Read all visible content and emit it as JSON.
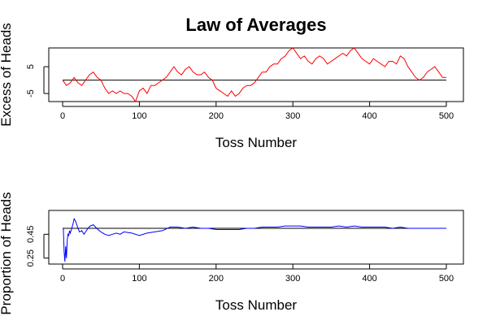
{
  "title": "Law of Averages",
  "chart_data": [
    {
      "type": "line",
      "ylabel": "Excess of Heads",
      "xlabel": "Toss Number",
      "xlim": [
        0,
        500
      ],
      "ylim": [
        -8,
        12
      ],
      "x_ticks": [
        "0",
        "100",
        "200",
        "300",
        "400",
        "500"
      ],
      "y_ticks": [
        "-5",
        "5"
      ],
      "reference_line": 0,
      "grid": false,
      "series": [
        {
          "color": "#ff0000",
          "x": [
            0,
            5,
            10,
            15,
            20,
            25,
            30,
            35,
            40,
            45,
            50,
            55,
            60,
            65,
            70,
            75,
            80,
            85,
            90,
            95,
            100,
            105,
            110,
            115,
            120,
            125,
            130,
            135,
            140,
            145,
            150,
            155,
            160,
            165,
            170,
            175,
            180,
            185,
            190,
            195,
            200,
            205,
            210,
            215,
            220,
            225,
            230,
            235,
            240,
            245,
            250,
            255,
            260,
            265,
            270,
            275,
            280,
            285,
            290,
            295,
            300,
            305,
            310,
            315,
            320,
            325,
            330,
            335,
            340,
            345,
            350,
            355,
            360,
            365,
            370,
            375,
            380,
            385,
            390,
            395,
            400,
            405,
            410,
            415,
            420,
            425,
            430,
            435,
            440,
            445,
            450,
            455,
            460,
            465,
            470,
            475,
            480,
            485,
            490,
            495,
            500
          ],
          "y": [
            0,
            -2,
            -1,
            1,
            -1,
            -2,
            0,
            2,
            3,
            1,
            0,
            -3,
            -5,
            -4,
            -5,
            -4,
            -5,
            -5,
            -6,
            -8,
            -4,
            -3,
            -5,
            -2,
            -2,
            -1,
            0,
            1,
            3,
            5,
            3,
            2,
            4,
            5,
            3,
            2,
            2,
            3,
            1,
            0,
            -3,
            -4,
            -5,
            -6,
            -4,
            -6,
            -5,
            -3,
            -2,
            -2,
            -1,
            1,
            3,
            3,
            5,
            6,
            6,
            8,
            9,
            11,
            12,
            10,
            8,
            9,
            7,
            6,
            8,
            9,
            8,
            6,
            7,
            8,
            9,
            10,
            9,
            11,
            12,
            10,
            8,
            7,
            6,
            8,
            7,
            6,
            5,
            7,
            7,
            6,
            9,
            8,
            5,
            3,
            1,
            0,
            1,
            3,
            4,
            5,
            3,
            1,
            1
          ]
        }
      ]
    },
    {
      "type": "line",
      "ylabel": "Proportion of Heads",
      "xlabel": "Toss Number",
      "xlim": [
        0,
        500
      ],
      "ylim": [
        0.2,
        0.65
      ],
      "x_ticks": [
        "0",
        "100",
        "200",
        "300",
        "400",
        "500"
      ],
      "y_ticks": [
        "0.25",
        "0.45"
      ],
      "reference_line": 0.5,
      "grid": false,
      "series": [
        {
          "color": "#0000ff",
          "x": [
            1,
            2,
            3,
            4,
            5,
            6,
            7,
            8,
            9,
            10,
            12,
            14,
            15,
            17,
            20,
            22,
            25,
            28,
            30,
            33,
            36,
            40,
            43,
            46,
            50,
            55,
            60,
            65,
            70,
            75,
            80,
            90,
            100,
            110,
            120,
            130,
            140,
            150,
            160,
            170,
            180,
            190,
            200,
            210,
            220,
            230,
            240,
            250,
            260,
            270,
            280,
            290,
            300,
            310,
            320,
            330,
            340,
            350,
            360,
            370,
            380,
            390,
            400,
            410,
            420,
            430,
            440,
            450,
            460,
            470,
            480,
            490,
            500
          ],
          "y": [
            0.5,
            0.3,
            0.22,
            0.35,
            0.25,
            0.4,
            0.45,
            0.44,
            0.48,
            0.46,
            0.5,
            0.55,
            0.58,
            0.56,
            0.5,
            0.47,
            0.48,
            0.45,
            0.47,
            0.5,
            0.52,
            0.53,
            0.51,
            0.49,
            0.47,
            0.45,
            0.44,
            0.45,
            0.46,
            0.45,
            0.47,
            0.46,
            0.44,
            0.46,
            0.47,
            0.48,
            0.51,
            0.51,
            0.5,
            0.51,
            0.5,
            0.5,
            0.49,
            0.49,
            0.49,
            0.49,
            0.5,
            0.5,
            0.51,
            0.51,
            0.51,
            0.52,
            0.52,
            0.52,
            0.51,
            0.51,
            0.51,
            0.51,
            0.52,
            0.51,
            0.52,
            0.51,
            0.51,
            0.51,
            0.51,
            0.5,
            0.51,
            0.5,
            0.5,
            0.5,
            0.5,
            0.5,
            0.5
          ]
        }
      ]
    }
  ]
}
